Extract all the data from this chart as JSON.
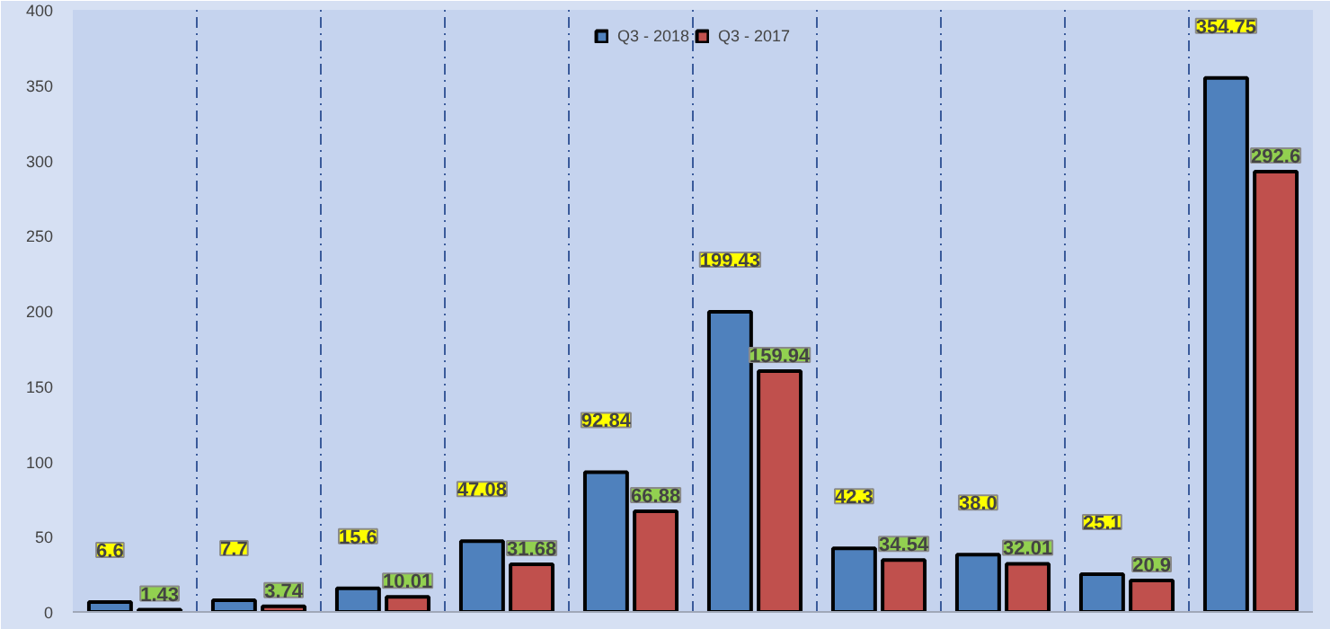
{
  "chart_data": {
    "type": "bar",
    "categories": [
      null,
      null,
      null,
      null,
      null,
      null,
      null,
      null,
      null,
      null
    ],
    "series": [
      {
        "name": "Q3 - 2018",
        "color": "#4f81bd",
        "values": [
          6.6,
          7.7,
          15.6,
          47.08,
          92.84,
          199.43,
          42.3,
          38.0,
          25.1,
          354.75
        ],
        "value_labels": [
          "6.6",
          "7.7",
          "15.6",
          "47.08",
          "92.84",
          "199.43",
          "42.3",
          "38.0",
          "25.1",
          "354.75"
        ]
      },
      {
        "name": "Q3 - 2017",
        "color": "#c0504d",
        "values": [
          1.43,
          3.74,
          10.01,
          31.68,
          66.88,
          159.94,
          34.54,
          32.01,
          20.9,
          292.6
        ]
      }
    ],
    "ylim": [
      0,
      400
    ],
    "yticks": [
      0,
      50,
      100,
      150,
      200,
      250,
      300,
      350,
      400
    ],
    "grid": "x",
    "legend": "top",
    "data_labels": true
  }
}
